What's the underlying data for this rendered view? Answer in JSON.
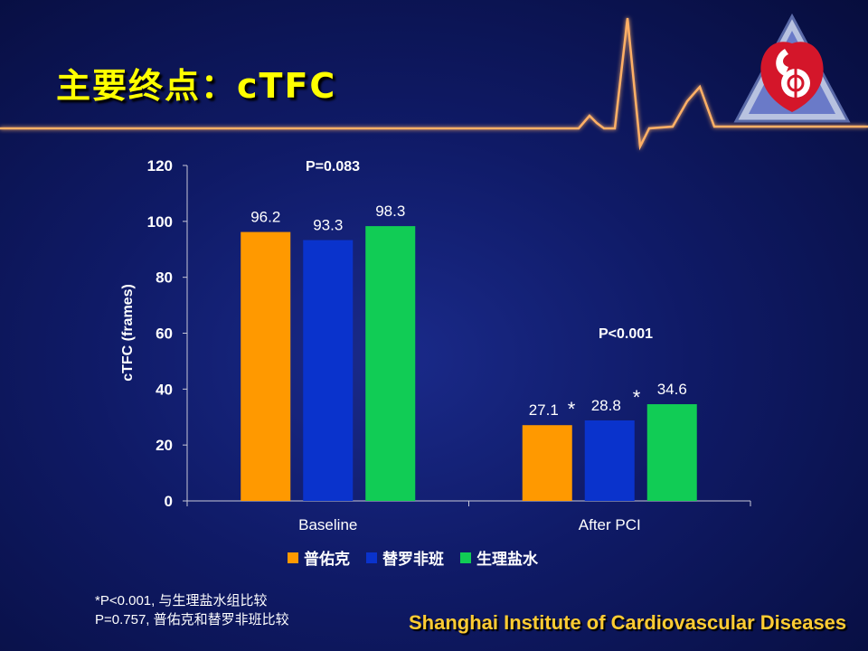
{
  "slide": {
    "title": "主要终点：cTFC",
    "institute": "Shanghai Institute of Cardiovascular Diseases",
    "footnote_line1": "*P<0.001, 与生理盐水组比较",
    "footnote_line2": "P=0.757, 普佑克和替罗非班比较"
  },
  "colors": {
    "accent_title": "#ffff00",
    "ecg_line": "#ff9a3c",
    "series_1": "#ff9900",
    "series_2": "#0a33cc",
    "series_3": "#11cc55"
  },
  "chart_data": {
    "type": "bar",
    "categories": [
      "Baseline",
      "After PCI"
    ],
    "series": [
      {
        "name": "普佑克",
        "values": [
          96.2,
          27.1
        ],
        "labels": [
          "96.2",
          "27.1"
        ]
      },
      {
        "name": "替罗非班",
        "values": [
          93.3,
          28.8
        ],
        "labels": [
          "93.3",
          "28.8"
        ]
      },
      {
        "name": "生理盐水",
        "values": [
          98.3,
          34.6
        ],
        "labels": [
          "98.3",
          "34.6"
        ]
      }
    ],
    "ylabel": "cTFC (frames)",
    "ylim": [
      0,
      120
    ],
    "yticks": [
      "0",
      "20",
      "40",
      "60",
      "80",
      "100",
      "120"
    ],
    "annotations": [
      "P=0.083",
      "P<0.001"
    ],
    "significance_marks": [
      "*",
      "*"
    ],
    "legend_position": "bottom"
  }
}
